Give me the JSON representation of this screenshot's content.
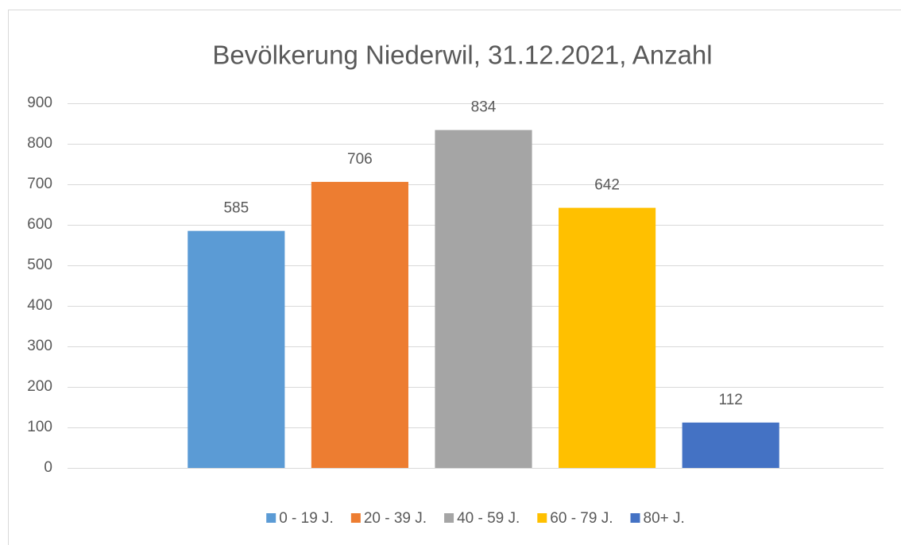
{
  "chart_data": {
    "type": "bar",
    "title": "Bevölkerung Niederwil, 31.12.2021, Anzahl",
    "categories": [
      null
    ],
    "series": [
      {
        "name": "0 - 19 J.",
        "color": "#5b9bd5",
        "values": [
          585
        ]
      },
      {
        "name": "20 - 39 J.",
        "color": "#ed7d31",
        "values": [
          706
        ]
      },
      {
        "name": "40 - 59 J.",
        "color": "#a5a5a5",
        "values": [
          834
        ]
      },
      {
        "name": "60 - 79 J.",
        "color": "#ffc000",
        "values": [
          642
        ]
      },
      {
        "name": "80+ J.",
        "color": "#4472c4",
        "values": [
          112
        ]
      }
    ],
    "ylim": [
      0,
      900
    ],
    "yticks": [
      0,
      100,
      200,
      300,
      400,
      500,
      600,
      700,
      800,
      900
    ],
    "grid": true,
    "legend": "bottom"
  }
}
